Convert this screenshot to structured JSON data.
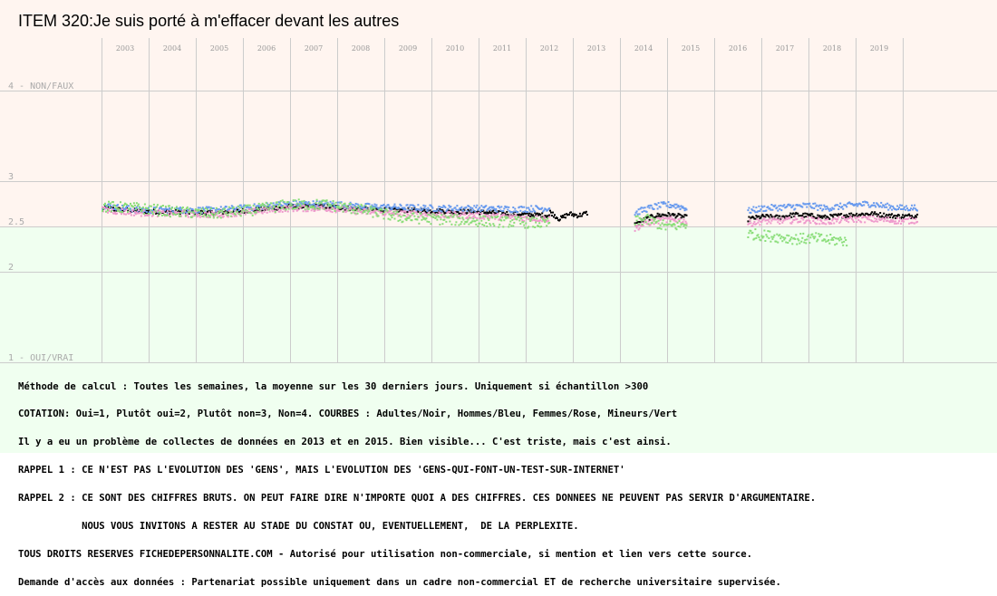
{
  "chart_data": {
    "type": "scatter",
    "title": "ITEM 320:Je suis porté à m'effacer devant les autres",
    "x_ticks": [
      "2003",
      "2004",
      "2005",
      "2006",
      "2007",
      "2008",
      "2009",
      "2010",
      "2011",
      "2012",
      "2013",
      "2014",
      "2015",
      "2016",
      "2017",
      "2018",
      "2019"
    ],
    "y_ticks": [
      {
        "value": 4,
        "label": "4 - NON/FAUX"
      },
      {
        "value": 3,
        "label": "3"
      },
      {
        "value": 2.5,
        "label": "2.5"
      },
      {
        "value": 2,
        "label": "2"
      },
      {
        "value": 1,
        "label": "1 - OUI/VRAI"
      }
    ],
    "ylim": [
      1,
      4
    ],
    "xlim": [
      2002.0,
      2020.3
    ],
    "grid": true,
    "colors": {
      "upper_band": "#fff5f0",
      "lower_band": "#f0fff0",
      "grid": "#cccccc",
      "adultes": "#000000",
      "hommes": "#6699ee",
      "femmes": "#ee99cc",
      "mineurs": "#88dd77"
    },
    "series": [
      {
        "name": "Adultes/Noir",
        "color": "#000000",
        "segments": [
          {
            "x_start": 2002.5,
            "x_end": 2012.0,
            "values": [
              2.7,
              2.67,
              2.66,
              2.65,
              2.68,
              2.72,
              2.72,
              2.69,
              2.68,
              2.67,
              2.66,
              2.64,
              2.62
            ]
          },
          {
            "x_start": 2012.0,
            "x_end": 2012.8,
            "values": [
              2.66,
              2.58,
              2.64,
              2.62,
              2.65
            ]
          },
          {
            "x_start": 2013.8,
            "x_end": 2014.9,
            "values": [
              2.52,
              2.58,
              2.62,
              2.63,
              2.62,
              2.6
            ]
          },
          {
            "x_start": 2016.2,
            "x_end": 2019.8,
            "values": [
              2.58,
              2.61,
              2.6,
              2.63,
              2.62,
              2.6,
              2.62,
              2.63,
              2.64,
              2.62,
              2.61,
              2.62
            ]
          }
        ]
      },
      {
        "name": "Hommes/Bleu",
        "color": "#6699ee",
        "segments": [
          {
            "x_start": 2002.5,
            "x_end": 2012.0,
            "values": [
              2.73,
              2.68,
              2.68,
              2.68,
              2.71,
              2.75,
              2.75,
              2.72,
              2.71,
              2.7,
              2.7,
              2.69,
              2.7
            ]
          },
          {
            "x_start": 2013.8,
            "x_end": 2014.9,
            "values": [
              2.65,
              2.69,
              2.72,
              2.74,
              2.73,
              2.7
            ]
          },
          {
            "x_start": 2016.2,
            "x_end": 2019.8,
            "values": [
              2.67,
              2.7,
              2.71,
              2.72,
              2.73,
              2.7,
              2.72,
              2.74,
              2.75,
              2.72,
              2.7,
              2.71
            ]
          }
        ]
      },
      {
        "name": "Femmes/Rose",
        "color": "#ee99cc",
        "segments": [
          {
            "x_start": 2002.5,
            "x_end": 2012.0,
            "values": [
              2.68,
              2.65,
              2.64,
              2.63,
              2.66,
              2.7,
              2.7,
              2.66,
              2.64,
              2.63,
              2.62,
              2.6,
              2.58
            ]
          },
          {
            "x_start": 2013.8,
            "x_end": 2014.9,
            "values": [
              2.48,
              2.53,
              2.56,
              2.57,
              2.57,
              2.55
            ]
          },
          {
            "x_start": 2016.2,
            "x_end": 2019.8,
            "values": [
              2.53,
              2.56,
              2.56,
              2.57,
              2.57,
              2.55,
              2.57,
              2.58,
              2.58,
              2.57,
              2.56,
              2.57
            ]
          }
        ]
      },
      {
        "name": "Mineurs/Vert",
        "color": "#88dd77",
        "segments": [
          {
            "x_start": 2002.5,
            "x_end": 2012.0,
            "values": [
              2.72,
              2.7,
              2.66,
              2.64,
              2.68,
              2.74,
              2.74,
              2.68,
              2.6,
              2.58,
              2.56,
              2.55,
              2.53
            ]
          },
          {
            "x_start": 2013.8,
            "x_end": 2014.9,
            "values": [
              2.55,
              2.58,
              2.54,
              2.5,
              2.51,
              2.52
            ]
          },
          {
            "x_start": 2016.2,
            "x_end": 2018.3,
            "values": [
              2.42,
              2.4,
              2.38,
              2.36,
              2.37,
              2.35,
              2.34
            ]
          }
        ]
      }
    ]
  },
  "notes": [
    "Méthode de calcul : Toutes les semaines, la moyenne sur les 30 derniers jours. Uniquement si échantillon >300",
    "COTATION: Oui=1, Plutôt oui=2, Plutôt non=3, Non=4. COURBES : Adultes/Noir, Hommes/Bleu, Femmes/Rose, Mineurs/Vert",
    "Il y a eu un problème de collectes de données en 2013 et en 2015. Bien visible... C'est triste, mais c'est ainsi.",
    "RAPPEL 1 : CE N'EST PAS L'EVOLUTION DES 'GENS', MAIS L'EVOLUTION DES 'GENS-QUI-FONT-UN-TEST-SUR-INTERNET'",
    "RAPPEL 2 : CE SONT DES CHIFFRES BRUTS. ON PEUT FAIRE DIRE N'IMPORTE QUOI A DES CHIFFRES. CES DONNEES NE PEUVENT PAS SERVIR D'ARGUMENTAIRE.",
    "           NOUS VOUS INVITONS A RESTER AU STADE DU CONSTAT OU, EVENTUELLEMENT,  DE LA PERPLEXITE.",
    "TOUS DROITS RESERVES FICHEDEPERSONNALITE.COM - Autorisé pour utilisation non-commerciale, si mention et lien vers cette source.",
    "Demande d'accès aux données : Partenariat possible uniquement dans un cadre non-commercial ET de recherche universitaire supervisée."
  ]
}
